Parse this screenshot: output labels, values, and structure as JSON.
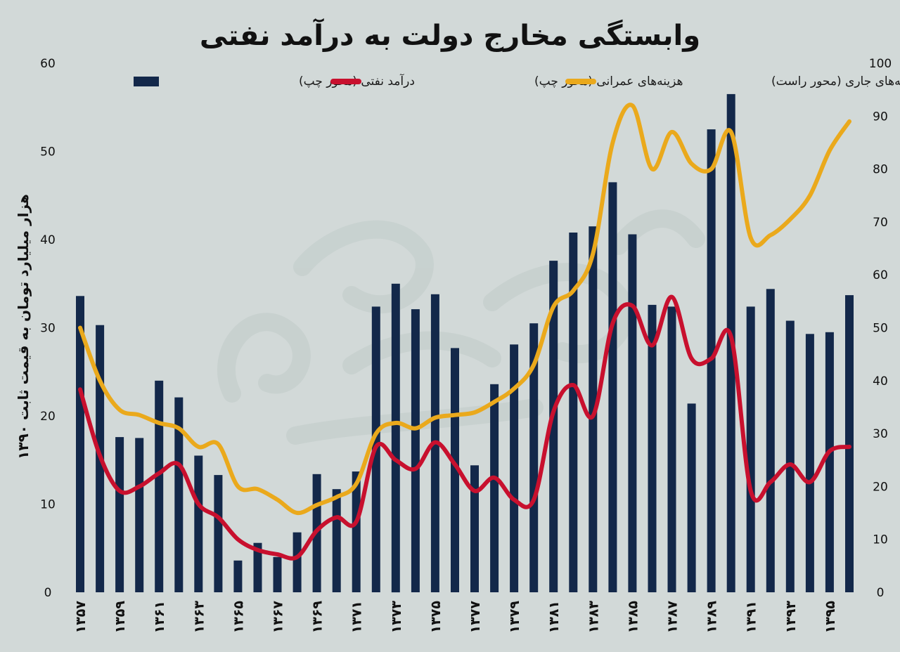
{
  "chart_data": {
    "type": "bar",
    "title": "وابستگی مخارج دولت به درآمد نفتی",
    "ylabel": "هزار میلیارد تومان به قیمت ثابت ۱۳۹۰",
    "ylim": [
      0,
      60
    ],
    "y2lim": [
      0,
      100
    ],
    "yticks_left": [
      "0",
      "10",
      "20",
      "30",
      "40",
      "50",
      "60"
    ],
    "yticks_right": [
      "0",
      "10",
      "20",
      "30",
      "40",
      "50",
      "60",
      "70",
      "80",
      "90",
      "100"
    ],
    "x_tick_labels": [
      "۱۳۵۷",
      "۱۳۵۹",
      "۱۳۶۱",
      "۱۳۶۳",
      "۱۳۶۵",
      "۱۳۶۷",
      "۱۳۶۹",
      "۱۳۷۱",
      "۱۳۷۳",
      "۱۳۷۵",
      "۱۳۷۷",
      "۱۳۷۹",
      "۱۳۸۱",
      "۱۳۸۳",
      "۱۳۸۵",
      "۱۳۸۷",
      "۱۳۸۹",
      "۱۳۹۱",
      "۱۳۹۳",
      "۱۳۹۵"
    ],
    "x": [
      1357,
      1358,
      1359,
      1360,
      1361,
      1362,
      1363,
      1364,
      1365,
      1366,
      1367,
      1368,
      1369,
      1370,
      1371,
      1372,
      1373,
      1374,
      1375,
      1376,
      1377,
      1378,
      1379,
      1380,
      1381,
      1382,
      1383,
      1384,
      1385,
      1386,
      1387,
      1388,
      1389,
      1390,
      1391,
      1392,
      1393,
      1394,
      1395,
      1396
    ],
    "legend_placement": "top",
    "grid": false,
    "series": [
      {
        "name": "درآمد نفتی (محور چپ)",
        "type": "bar",
        "axis": "left",
        "color": "#13284a",
        "values": [
          33.6,
          30.3,
          17.6,
          17.5,
          24.0,
          22.1,
          15.5,
          13.3,
          3.6,
          5.6,
          4.0,
          6.8,
          13.4,
          11.7,
          13.7,
          32.4,
          35.0,
          32.1,
          33.8,
          27.7,
          14.4,
          23.6,
          28.1,
          30.5,
          37.6,
          40.8,
          41.5,
          46.5,
          40.6,
          32.6,
          32.4,
          21.4,
          52.5,
          56.5,
          32.4,
          34.4,
          30.8,
          29.3,
          29.5,
          33.7
        ]
      },
      {
        "name": "هزینه‌های عمرانی (محور چپ)",
        "type": "line",
        "axis": "left",
        "color": "#c8102e",
        "values": [
          23.0,
          15.5,
          11.5,
          12.0,
          13.5,
          14.5,
          10.0,
          8.5,
          6.0,
          4.8,
          4.3,
          4.0,
          7.0,
          8.5,
          8.0,
          16.5,
          15.0,
          14.0,
          17.0,
          14.5,
          11.5,
          13.0,
          10.5,
          10.5,
          20.5,
          23.5,
          20.0,
          30.5,
          32.5,
          28.0,
          33.5,
          26.5,
          26.5,
          29.0,
          11.5,
          12.5,
          14.5,
          12.5,
          16.0,
          16.5
        ]
      },
      {
        "name": "هزینه‌های جاری (محور راست)",
        "type": "line",
        "axis": "right",
        "color": "#eaa91c",
        "values": [
          50.0,
          40.0,
          34.5,
          33.5,
          32.0,
          31.0,
          27.5,
          28.0,
          20.0,
          19.5,
          17.5,
          15.0,
          16.5,
          18.0,
          20.5,
          30.0,
          32.0,
          31.0,
          33.0,
          33.5,
          34.0,
          36.0,
          38.5,
          43.0,
          54.0,
          57.0,
          64.0,
          85.0,
          92.0,
          80.0,
          87.0,
          81.0,
          80.0,
          87.0,
          67.0,
          67.5,
          70.5,
          75.0,
          83.5,
          89.0
        ]
      }
    ]
  }
}
